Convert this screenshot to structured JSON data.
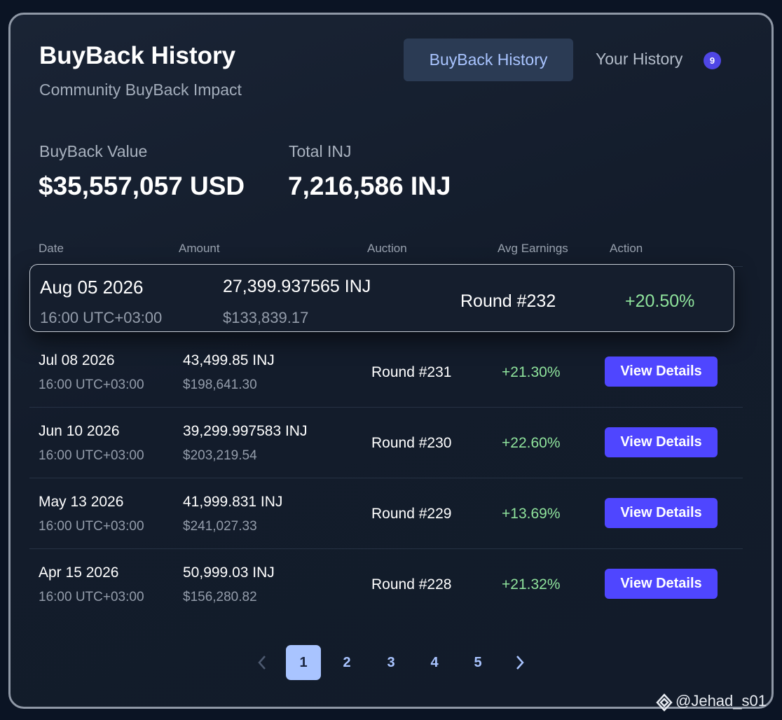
{
  "header": {
    "title": "BuyBack History",
    "subtitle": "Community BuyBack Impact"
  },
  "tabs": [
    {
      "label": "BuyBack History"
    },
    {
      "label": "Your History",
      "badge": "9"
    }
  ],
  "stats": [
    {
      "label": "BuyBack Value",
      "value": "$35,557,057 USD"
    },
    {
      "label": "Total INJ",
      "value": "7,216,586 INJ"
    }
  ],
  "table": {
    "columns": [
      "Date",
      "Amount",
      "Auction",
      "Avg Earnings",
      "Action"
    ],
    "rows": [
      {
        "date": "Aug 05 2026",
        "time": "16:00 UTC+03:00",
        "amount": "27,399.937565 INJ",
        "usd": "$133,839.17",
        "auction": "Round #232",
        "earnings": "+20.50%"
      },
      {
        "date": "Jul 08 2026",
        "time": "16:00 UTC+03:00",
        "amount": "43,499.85 INJ",
        "usd": "$198,641.30",
        "auction": "Round #231",
        "earnings": "+21.30%",
        "action": "View Details"
      },
      {
        "date": "Jun 10 2026",
        "time": "16:00 UTC+03:00",
        "amount": "39,299.997583 INJ",
        "usd": "$203,219.54",
        "auction": "Round #230",
        "earnings": "+22.60%",
        "action": "View Details"
      },
      {
        "date": "May 13 2026",
        "time": "16:00 UTC+03:00",
        "amount": "41,999.831 INJ",
        "usd": "$241,027.33",
        "auction": "Round #229",
        "earnings": "+13.69%",
        "action": "View Details"
      },
      {
        "date": "Apr 15 2026",
        "time": "16:00 UTC+03:00",
        "amount": "50,999.03 INJ",
        "usd": "$156,280.82",
        "auction": "Round #228",
        "earnings": "+21.32%",
        "action": "View Details"
      }
    ]
  },
  "pagination": {
    "pages": [
      "1",
      "2",
      "3",
      "4",
      "5"
    ]
  },
  "watermark": "@Jehad_s01"
}
